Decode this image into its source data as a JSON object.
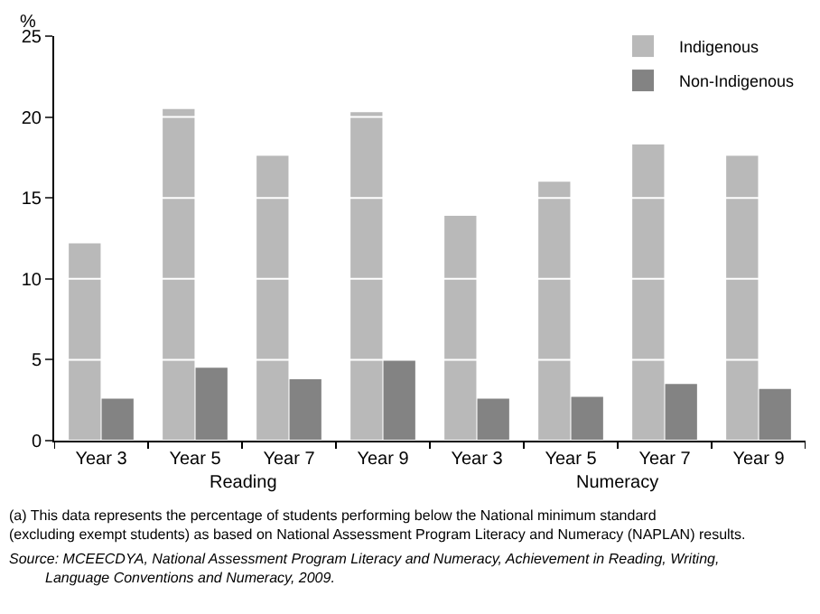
{
  "chart_data": {
    "type": "bar",
    "ylabel": "%",
    "categories": [
      "Year 3",
      "Year 5",
      "Year 7",
      "Year 9",
      "Year 3",
      "Year 5",
      "Year 7",
      "Year 9"
    ],
    "series": [
      {
        "name": "Indigenous",
        "color": "#b9b9b9",
        "values": [
          12.2,
          20.5,
          17.6,
          20.3,
          13.9,
          16.0,
          18.3,
          17.6
        ]
      },
      {
        "name": "Non-Indigenous",
        "color": "#838383",
        "values": [
          2.6,
          4.5,
          3.8,
          5.0,
          2.6,
          2.7,
          3.5,
          3.2
        ]
      }
    ],
    "ylim": [
      0,
      25
    ],
    "yticks": [
      0,
      5,
      10,
      15,
      20,
      25
    ],
    "grid": "y",
    "legend": "top right",
    "annotations": [
      "Reading",
      "Numeracy",
      "(a) This data represents the percentage of students performing below the National minimum standard (excluding exempt students) as based on National Assessment Program Literacy and Numeracy (NAPLAN) results.",
      "Source: MCEECDYA, National Assessment Program Literacy and Numeracy, Achievement in Reading, Writing, Language Conventions and Numeracy, 2009."
    ]
  }
}
